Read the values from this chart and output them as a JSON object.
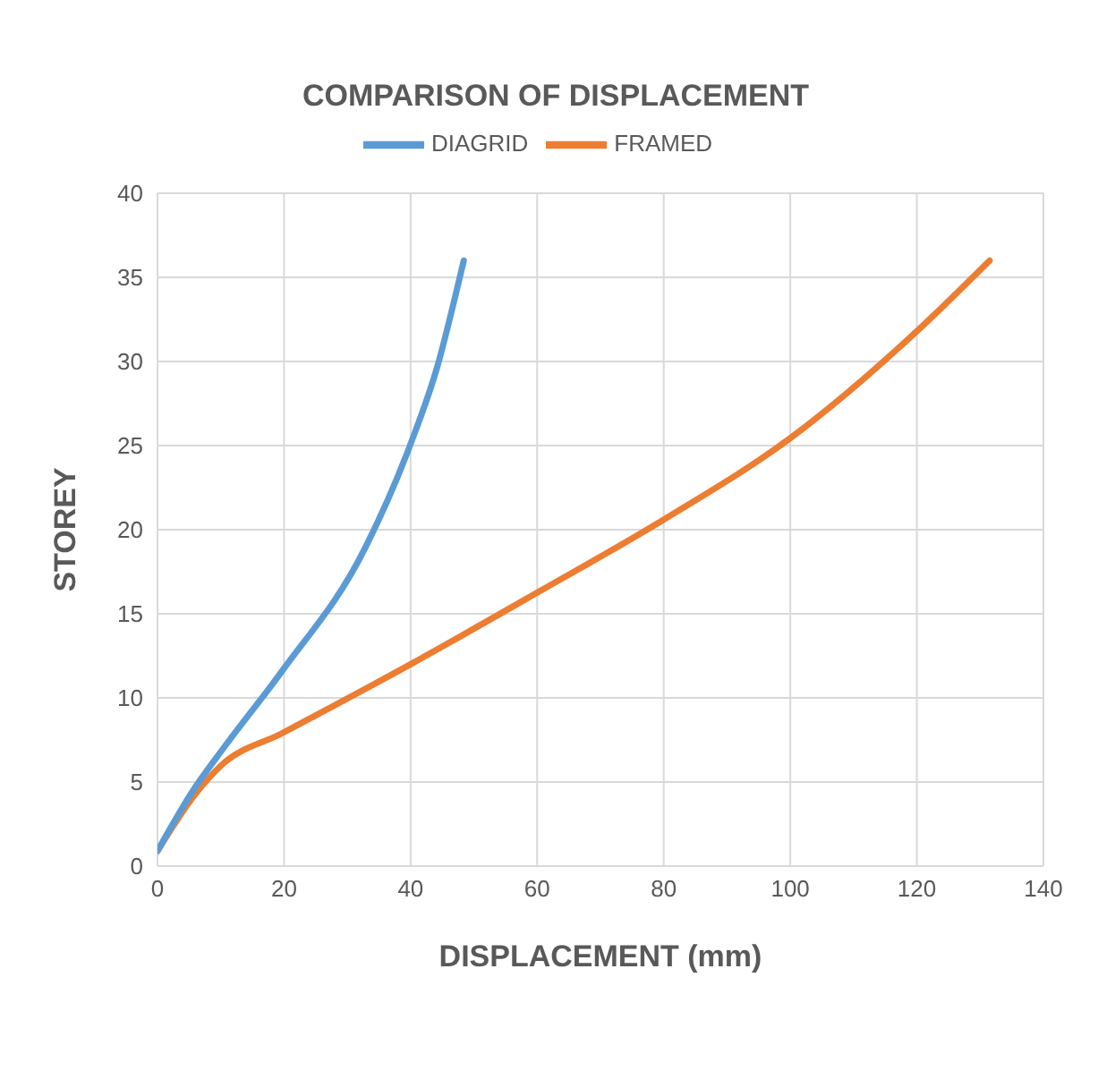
{
  "chart_data": {
    "type": "line",
    "title": "COMPARISON OF DISPLACEMENT",
    "xlabel": "DISPLACEMENT (mm)",
    "ylabel": "STOREY",
    "xlim": [
      0,
      140
    ],
    "xticks": [
      0,
      20,
      40,
      60,
      80,
      100,
      120,
      140
    ],
    "ylim": [
      0,
      40
    ],
    "yticks": [
      0,
      5,
      10,
      15,
      20,
      25,
      30,
      35,
      40
    ],
    "grid": true,
    "legend": "top",
    "marker": "none",
    "series": [
      {
        "name": "FRAMED",
        "color": "#ed7d31",
        "x": [
          0,
          5.8,
          10.1,
          19.7,
          40,
          60.2,
          80,
          100.2,
          120,
          131.5
        ],
        "values": [
          0.9,
          4.2,
          6,
          7.9,
          12,
          16.3,
          20.6,
          25.5,
          31.8,
          36
        ]
      },
      {
        "name": "DIAGRID",
        "color": "#5b9bd5",
        "x": [
          0,
          5.8,
          10.6,
          19.7,
          32.8,
          40,
          44.3,
          47.2,
          48.4
        ],
        "values": [
          0.9,
          4.6,
          7.1,
          11.6,
          18.9,
          25.1,
          29.8,
          34.1,
          36
        ]
      }
    ]
  }
}
